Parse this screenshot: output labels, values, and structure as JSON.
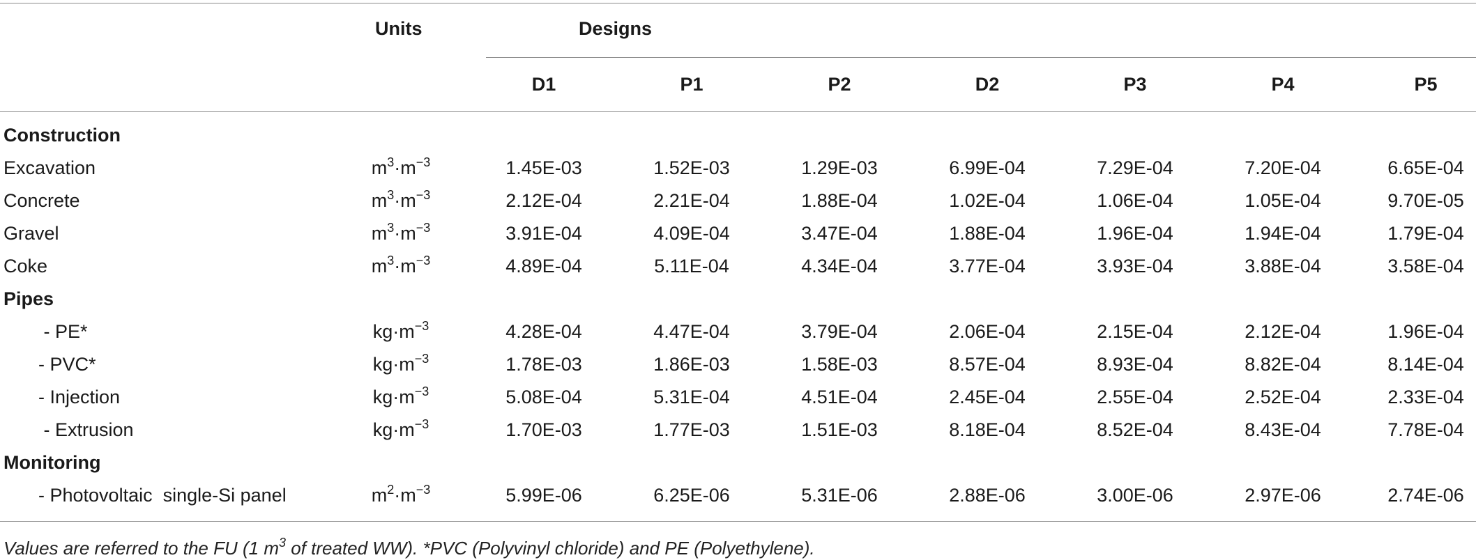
{
  "header": {
    "units_label": "Units",
    "designs_label": "Designs",
    "design_columns": [
      "D1",
      "P1",
      "P2",
      "D2",
      "P3",
      "P4",
      "P5"
    ]
  },
  "sections": [
    {
      "title": "Construction",
      "rows": [
        {
          "label": "Excavation",
          "unit": {
            "base": "m",
            "sup1": "3",
            "mid": "·m",
            "sup2": "−3"
          },
          "values": [
            "1.45E-03",
            "1.52E-03",
            "1.29E-03",
            "6.99E-04",
            "7.29E-04",
            "7.20E-04",
            "6.65E-04"
          ]
        },
        {
          "label": "Concrete",
          "unit": {
            "base": "m",
            "sup1": "3",
            "mid": "·m",
            "sup2": "−3"
          },
          "values": [
            "2.12E-04",
            "2.21E-04",
            "1.88E-04",
            "1.02E-04",
            "1.06E-04",
            "1.05E-04",
            "9.70E-05"
          ]
        },
        {
          "label": "Gravel",
          "unit": {
            "base": "m",
            "sup1": "3",
            "mid": "·m",
            "sup2": "−3"
          },
          "values": [
            "3.91E-04",
            "4.09E-04",
            "3.47E-04",
            "1.88E-04",
            "1.96E-04",
            "1.94E-04",
            "1.79E-04"
          ]
        },
        {
          "label": "Coke",
          "unit": {
            "base": "m",
            "sup1": "3",
            "mid": "·m",
            "sup2": "−3"
          },
          "values": [
            "4.89E-04",
            "5.11E-04",
            "4.34E-04",
            "3.77E-04",
            "3.93E-04",
            "3.88E-04",
            "3.58E-04"
          ]
        }
      ]
    },
    {
      "title": "Pipes",
      "rows": [
        {
          "label": " - PE*",
          "unit": {
            "base": "kg",
            "sup1": "",
            "mid": "·m",
            "sup2": "−3"
          },
          "values": [
            "4.28E-04",
            "4.47E-04",
            "3.79E-04",
            "2.06E-04",
            "2.15E-04",
            "2.12E-04",
            "1.96E-04"
          ]
        },
        {
          "label": "- PVC*",
          "unit": {
            "base": "kg",
            "sup1": "",
            "mid": "·m",
            "sup2": "−3"
          },
          "values": [
            "1.78E-03",
            "1.86E-03",
            "1.58E-03",
            "8.57E-04",
            "8.93E-04",
            "8.82E-04",
            "8.14E-04"
          ]
        },
        {
          "label": "- Injection",
          "unit": {
            "base": "kg",
            "sup1": "",
            "mid": "·m",
            "sup2": "−3"
          },
          "values": [
            "5.08E-04",
            "5.31E-04",
            "4.51E-04",
            "2.45E-04",
            "2.55E-04",
            "2.52E-04",
            "2.33E-04"
          ]
        },
        {
          "label": " - Extrusion",
          "unit": {
            "base": "kg",
            "sup1": "",
            "mid": "·m",
            "sup2": "−3"
          },
          "values": [
            "1.70E-03",
            "1.77E-03",
            "1.51E-03",
            "8.18E-04",
            "8.52E-04",
            "8.43E-04",
            "7.78E-04"
          ]
        }
      ]
    },
    {
      "title": "Monitoring",
      "rows": [
        {
          "label": "- Photovoltaic  single-Si panel",
          "unit": {
            "base": "m",
            "sup1": "2",
            "mid": "·m",
            "sup2": "−3"
          },
          "values": [
            "5.99E-06",
            "6.25E-06",
            "5.31E-06",
            "2.88E-06",
            "3.00E-06",
            "2.97E-06",
            "2.74E-06"
          ]
        }
      ]
    }
  ],
  "footnote": {
    "part1": "Values are referred to the FU (1 m",
    "sup": "3",
    "part2": " of treated WW). *PVC (Polyvinyl chloride) and PE (Polyethylene)."
  }
}
